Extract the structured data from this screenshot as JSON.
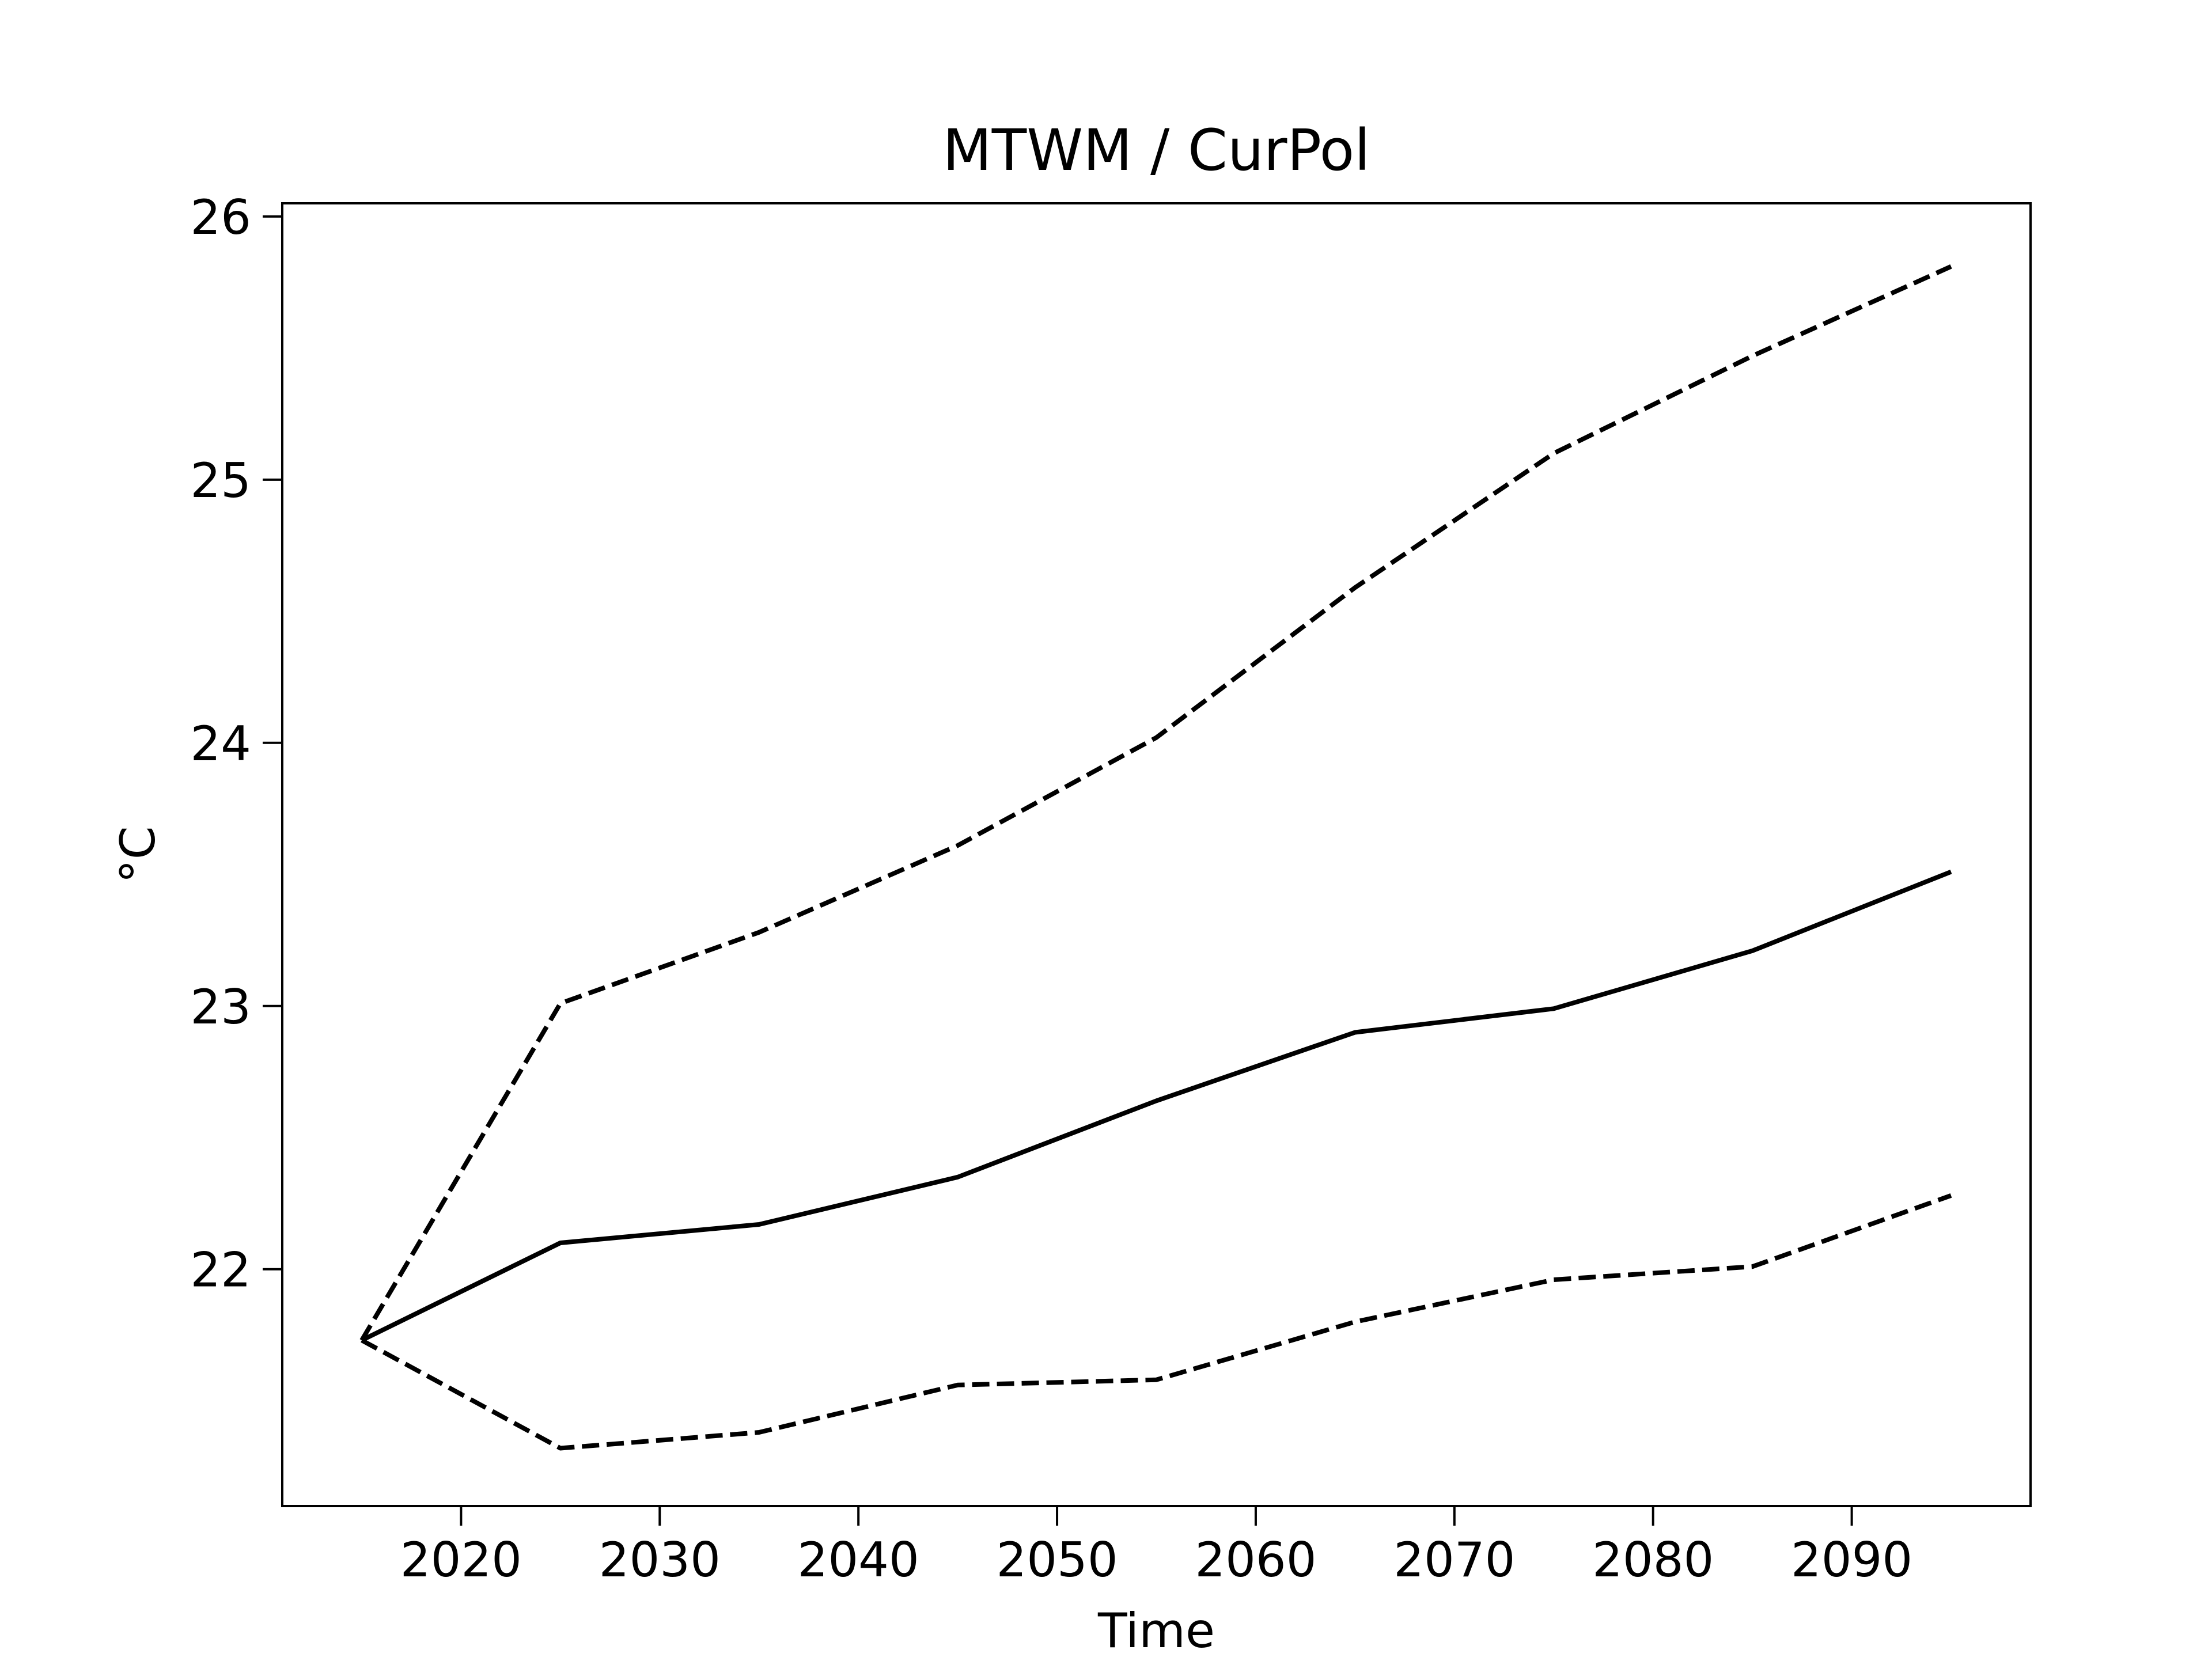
{
  "chart_data": {
    "type": "line",
    "title": "MTWM / CurPol",
    "xlabel": "Time",
    "ylabel": "°C",
    "xlim": [
      2011,
      2099
    ],
    "ylim": [
      21.1,
      26.05
    ],
    "x_ticks": [
      2020,
      2030,
      2040,
      2050,
      2060,
      2070,
      2080,
      2090
    ],
    "y_ticks": [
      22,
      23,
      24,
      25,
      26
    ],
    "x_tick_labels": [
      "2020",
      "2030",
      "2040",
      "2050",
      "2060",
      "2070",
      "2080",
      "2090"
    ],
    "y_tick_labels": [
      "22",
      "23",
      "24",
      "25",
      "26"
    ],
    "grid": false,
    "legend": "none",
    "x": [
      2015,
      2025,
      2035,
      2045,
      2055,
      2065,
      2075,
      2085,
      2095
    ],
    "series": [
      {
        "style": "solid",
        "color": "#000000",
        "values": [
          21.73,
          22.1,
          22.17,
          22.35,
          22.64,
          22.9,
          22.99,
          23.21,
          23.51
        ]
      },
      {
        "style": "dashed",
        "color": "#000000",
        "values": [
          21.73,
          23.01,
          23.28,
          23.61,
          24.02,
          24.59,
          25.1,
          25.47,
          25.81
        ]
      },
      {
        "style": "dashed",
        "color": "#000000",
        "values": [
          21.73,
          21.32,
          21.38,
          21.56,
          21.58,
          21.8,
          21.96,
          22.01,
          22.28
        ]
      }
    ]
  }
}
